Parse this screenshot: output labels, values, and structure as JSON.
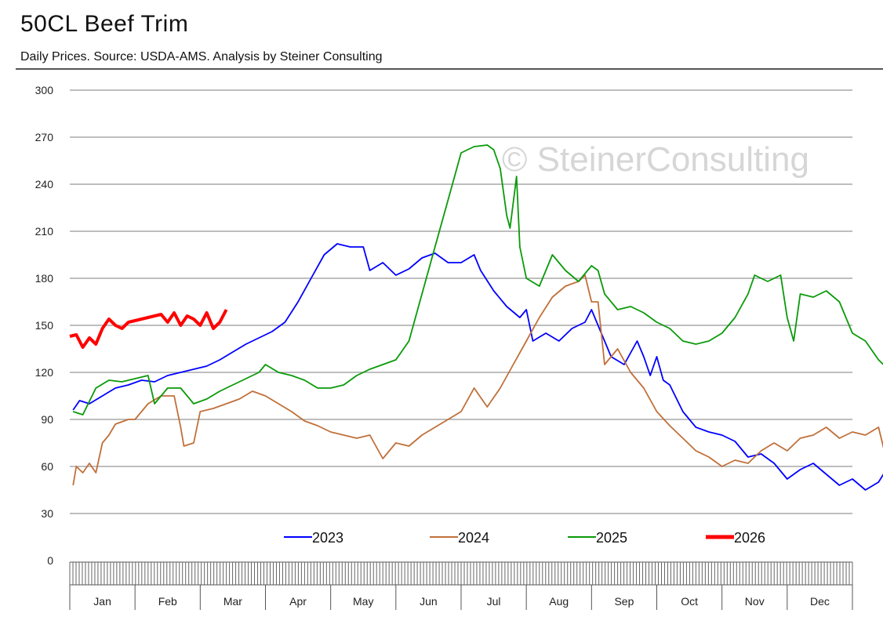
{
  "title": "50CL Beef Trim",
  "subtitle": "Daily Prices.  Source: USDA-AMS.  Analysis by Steiner Consulting",
  "watermark": "© SteinerConsulting",
  "chart_data": {
    "type": "line",
    "title": "50CL Beef Trim",
    "subtitle": "Daily Prices.  Source: USDA-AMS.  Analysis by Steiner Consulting",
    "xlabel": "",
    "ylabel": "",
    "ylim": [
      0,
      300
    ],
    "yticks": [
      0,
      30,
      60,
      90,
      120,
      150,
      180,
      210,
      240,
      270,
      300
    ],
    "months": [
      "Jan",
      "Feb",
      "Mar",
      "Apr",
      "May",
      "Jun",
      "Jul",
      "Aug",
      "Sep",
      "Oct",
      "Nov",
      "Dec"
    ],
    "grid": true,
    "legend_position": "bottom",
    "x_unit": "month (1 = start of Jan, 13 = end of Dec)",
    "series": [
      {
        "name": "2023",
        "color": "#0000ff",
        "points": [
          [
            1.05,
            96
          ],
          [
            1.15,
            102
          ],
          [
            1.3,
            100
          ],
          [
            1.5,
            105
          ],
          [
            1.7,
            110
          ],
          [
            1.9,
            112
          ],
          [
            2.1,
            115
          ],
          [
            2.3,
            114
          ],
          [
            2.5,
            118
          ],
          [
            2.7,
            120
          ],
          [
            2.9,
            122
          ],
          [
            3.1,
            124
          ],
          [
            3.3,
            128
          ],
          [
            3.5,
            133
          ],
          [
            3.7,
            138
          ],
          [
            3.9,
            142
          ],
          [
            4.1,
            146
          ],
          [
            4.3,
            152
          ],
          [
            4.5,
            165
          ],
          [
            4.7,
            180
          ],
          [
            4.9,
            195
          ],
          [
            5.1,
            202
          ],
          [
            5.3,
            200
          ],
          [
            5.5,
            200
          ],
          [
            5.6,
            185
          ],
          [
            5.8,
            190
          ],
          [
            6.0,
            182
          ],
          [
            6.2,
            186
          ],
          [
            6.4,
            193
          ],
          [
            6.6,
            196
          ],
          [
            6.8,
            190
          ],
          [
            7.0,
            190
          ],
          [
            7.2,
            195
          ],
          [
            7.3,
            185
          ],
          [
            7.5,
            172
          ],
          [
            7.7,
            162
          ],
          [
            7.9,
            155
          ],
          [
            8.0,
            160
          ],
          [
            8.1,
            140
          ],
          [
            8.3,
            145
          ],
          [
            8.5,
            140
          ],
          [
            8.7,
            148
          ],
          [
            8.9,
            152
          ],
          [
            9.0,
            160
          ],
          [
            9.15,
            145
          ],
          [
            9.3,
            130
          ],
          [
            9.5,
            125
          ],
          [
            9.7,
            140
          ],
          [
            9.8,
            130
          ],
          [
            9.9,
            118
          ],
          [
            10.0,
            130
          ],
          [
            10.1,
            115
          ],
          [
            10.2,
            112
          ],
          [
            10.4,
            95
          ],
          [
            10.6,
            85
          ],
          [
            10.8,
            82
          ],
          [
            11.0,
            80
          ],
          [
            11.2,
            76
          ],
          [
            11.4,
            66
          ],
          [
            11.6,
            68
          ],
          [
            11.8,
            62
          ],
          [
            12.0,
            52
          ],
          [
            12.2,
            58
          ],
          [
            12.4,
            62
          ],
          [
            12.6,
            55
          ],
          [
            12.8,
            48
          ],
          [
            13.0,
            52
          ],
          [
            13.2,
            45
          ],
          [
            13.4,
            50
          ],
          [
            13.55,
            60
          ],
          [
            13.6,
            48
          ]
        ]
      },
      {
        "name": "2024",
        "color": "#c0703a",
        "points": [
          [
            1.05,
            48
          ],
          [
            1.1,
            60
          ],
          [
            1.2,
            56
          ],
          [
            1.3,
            62
          ],
          [
            1.4,
            56
          ],
          [
            1.5,
            75
          ],
          [
            1.6,
            80
          ],
          [
            1.7,
            87
          ],
          [
            1.9,
            90
          ],
          [
            2.0,
            90
          ],
          [
            2.2,
            100
          ],
          [
            2.4,
            105
          ],
          [
            2.6,
            105
          ],
          [
            2.7,
            85
          ],
          [
            2.75,
            73
          ],
          [
            2.9,
            75
          ],
          [
            3.0,
            95
          ],
          [
            3.2,
            97
          ],
          [
            3.4,
            100
          ],
          [
            3.6,
            103
          ],
          [
            3.8,
            108
          ],
          [
            4.0,
            105
          ],
          [
            4.2,
            100
          ],
          [
            4.4,
            95
          ],
          [
            4.6,
            89
          ],
          [
            4.8,
            86
          ],
          [
            5.0,
            82
          ],
          [
            5.2,
            80
          ],
          [
            5.4,
            78
          ],
          [
            5.6,
            80
          ],
          [
            5.8,
            65
          ],
          [
            6.0,
            75
          ],
          [
            6.2,
            73
          ],
          [
            6.4,
            80
          ],
          [
            6.6,
            85
          ],
          [
            6.8,
            90
          ],
          [
            7.0,
            95
          ],
          [
            7.2,
            110
          ],
          [
            7.4,
            98
          ],
          [
            7.6,
            110
          ],
          [
            7.8,
            125
          ],
          [
            8.0,
            140
          ],
          [
            8.2,
            155
          ],
          [
            8.4,
            168
          ],
          [
            8.6,
            175
          ],
          [
            8.8,
            178
          ],
          [
            8.9,
            182
          ],
          [
            9.0,
            165
          ],
          [
            9.1,
            165
          ],
          [
            9.2,
            125
          ],
          [
            9.4,
            135
          ],
          [
            9.6,
            120
          ],
          [
            9.8,
            110
          ],
          [
            10.0,
            95
          ],
          [
            10.2,
            86
          ],
          [
            10.4,
            78
          ],
          [
            10.6,
            70
          ],
          [
            10.8,
            66
          ],
          [
            11.0,
            60
          ],
          [
            11.2,
            64
          ],
          [
            11.4,
            62
          ],
          [
            11.6,
            70
          ],
          [
            11.8,
            75
          ],
          [
            12.0,
            70
          ],
          [
            12.2,
            78
          ],
          [
            12.4,
            80
          ],
          [
            12.6,
            85
          ],
          [
            12.8,
            78
          ],
          [
            13.0,
            82
          ],
          [
            13.2,
            80
          ],
          [
            13.4,
            85
          ],
          [
            13.5,
            68
          ],
          [
            13.6,
            80
          ],
          [
            13.8,
            80
          ]
        ]
      },
      {
        "name": "2025",
        "color": "#0a9a0a",
        "points": [
          [
            1.05,
            95
          ],
          [
            1.2,
            93
          ],
          [
            1.4,
            110
          ],
          [
            1.6,
            115
          ],
          [
            1.8,
            114
          ],
          [
            2.0,
            116
          ],
          [
            2.2,
            118
          ],
          [
            2.3,
            100
          ],
          [
            2.5,
            110
          ],
          [
            2.7,
            110
          ],
          [
            2.9,
            100
          ],
          [
            3.1,
            103
          ],
          [
            3.3,
            108
          ],
          [
            3.5,
            112
          ],
          [
            3.7,
            116
          ],
          [
            3.9,
            120
          ],
          [
            4.0,
            125
          ],
          [
            4.2,
            120
          ],
          [
            4.4,
            118
          ],
          [
            4.6,
            115
          ],
          [
            4.8,
            110
          ],
          [
            5.0,
            110
          ],
          [
            5.2,
            112
          ],
          [
            5.4,
            118
          ],
          [
            5.6,
            122
          ],
          [
            5.8,
            125
          ],
          [
            6.0,
            128
          ],
          [
            6.2,
            140
          ],
          [
            6.4,
            170
          ],
          [
            6.6,
            200
          ],
          [
            6.8,
            230
          ],
          [
            7.0,
            260
          ],
          [
            7.2,
            264
          ],
          [
            7.4,
            265
          ],
          [
            7.5,
            262
          ],
          [
            7.6,
            250
          ],
          [
            7.7,
            220
          ],
          [
            7.75,
            212
          ],
          [
            7.85,
            245
          ],
          [
            7.9,
            200
          ],
          [
            8.0,
            180
          ],
          [
            8.2,
            175
          ],
          [
            8.4,
            195
          ],
          [
            8.6,
            185
          ],
          [
            8.8,
            178
          ],
          [
            9.0,
            188
          ],
          [
            9.1,
            185
          ],
          [
            9.2,
            170
          ],
          [
            9.4,
            160
          ],
          [
            9.6,
            162
          ],
          [
            9.8,
            158
          ],
          [
            10.0,
            152
          ],
          [
            10.2,
            148
          ],
          [
            10.4,
            140
          ],
          [
            10.6,
            138
          ],
          [
            10.8,
            140
          ],
          [
            11.0,
            145
          ],
          [
            11.2,
            155
          ],
          [
            11.4,
            170
          ],
          [
            11.5,
            182
          ],
          [
            11.7,
            178
          ],
          [
            11.9,
            182
          ],
          [
            12.0,
            155
          ],
          [
            12.1,
            140
          ],
          [
            12.2,
            170
          ],
          [
            12.4,
            168
          ],
          [
            12.6,
            172
          ],
          [
            12.8,
            165
          ],
          [
            13.0,
            145
          ],
          [
            13.2,
            140
          ],
          [
            13.4,
            128
          ],
          [
            13.6,
            120
          ],
          [
            13.7,
            140
          ],
          [
            13.8,
            130
          ]
        ]
      },
      {
        "name": "2026",
        "color": "#ff0000",
        "points": [
          [
            1.0,
            143
          ],
          [
            1.1,
            144
          ],
          [
            1.2,
            136
          ],
          [
            1.3,
            142
          ],
          [
            1.4,
            138
          ],
          [
            1.5,
            148
          ],
          [
            1.6,
            154
          ],
          [
            1.7,
            150
          ],
          [
            1.8,
            148
          ],
          [
            1.9,
            152
          ],
          [
            2.0,
            153
          ],
          [
            2.2,
            155
          ],
          [
            2.4,
            157
          ],
          [
            2.5,
            152
          ],
          [
            2.6,
            158
          ],
          [
            2.7,
            150
          ],
          [
            2.8,
            156
          ],
          [
            2.9,
            154
          ],
          [
            3.0,
            150
          ],
          [
            3.1,
            158
          ],
          [
            3.2,
            148
          ],
          [
            3.3,
            152
          ],
          [
            3.4,
            160
          ]
        ]
      }
    ]
  }
}
